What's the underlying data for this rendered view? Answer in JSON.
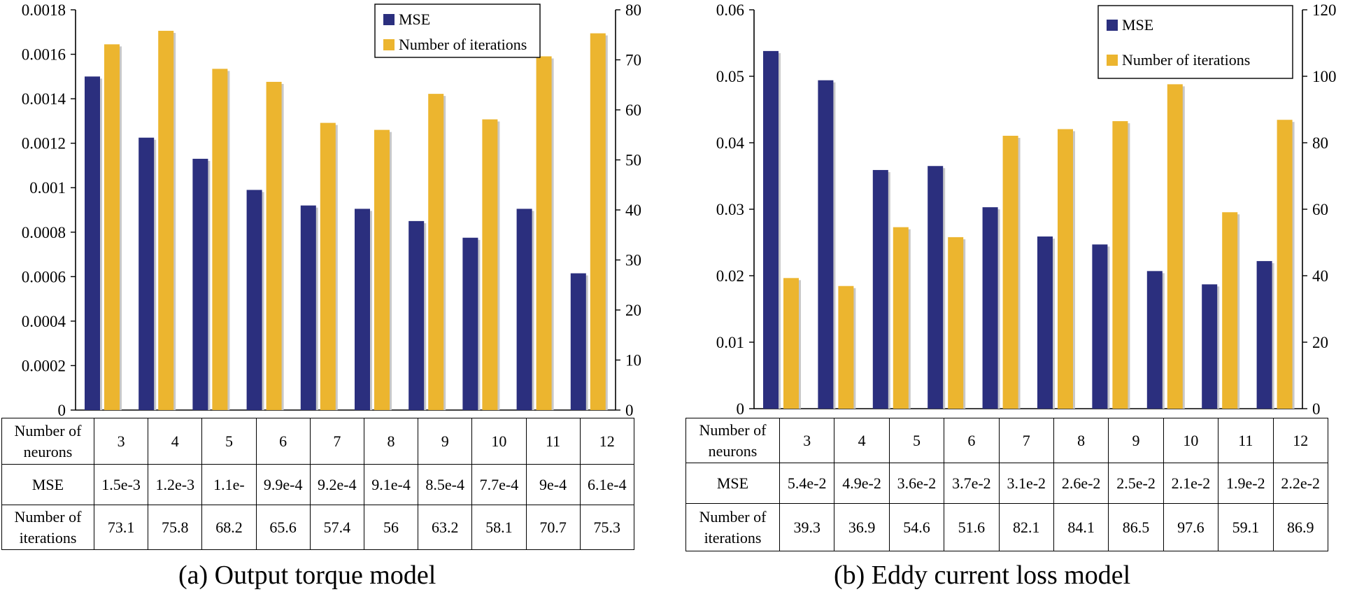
{
  "chart_data": [
    {
      "type": "bar",
      "caption": "(a) Output torque model",
      "categories": [
        "3",
        "4",
        "5",
        "6",
        "7",
        "8",
        "9",
        "10",
        "11",
        "12"
      ],
      "series": [
        {
          "name": "MSE",
          "axis": "left",
          "color": "#2b2f7e",
          "values": [
            0.0015,
            0.001225,
            0.00113,
            0.00099,
            0.00092,
            0.000905,
            0.00085,
            0.000775,
            0.000905,
            0.000615
          ]
        },
        {
          "name": "Number of iterations",
          "axis": "right",
          "color": "#ecb52f",
          "values": [
            73.1,
            75.8,
            68.2,
            65.6,
            57.4,
            56,
            63.2,
            58.1,
            70.7,
            75.3
          ]
        }
      ],
      "y_left": {
        "lim": [
          0,
          0.0018
        ],
        "ticks": [
          "0",
          "0.0002",
          "0.0004",
          "0.0006",
          "0.0008",
          "0.001",
          "0.0012",
          "0.0014",
          "0.0016",
          "0.0018"
        ]
      },
      "y_right": {
        "lim": [
          0,
          80
        ],
        "ticks": [
          "0",
          "10",
          "20",
          "30",
          "40",
          "50",
          "60",
          "70",
          "80"
        ]
      },
      "legend": {
        "position": "top-right",
        "entries": [
          "MSE",
          "Number of iterations"
        ]
      },
      "table": {
        "row_labels": [
          [
            "Number of",
            "neurons"
          ],
          [
            "MSE"
          ],
          [
            "Number of",
            "iterations"
          ]
        ],
        "neurons": [
          "3",
          "4",
          "5",
          "6",
          "7",
          "8",
          "9",
          "10",
          "11",
          "12"
        ],
        "mse": [
          "1.5e-3",
          "1.2e-3",
          "1.1e-",
          "9.9e-4",
          "9.2e-4",
          "9.1e-4",
          "8.5e-4",
          "7.7e-4",
          "9e-4",
          "6.1e-4"
        ],
        "iterations": [
          "73.1",
          "75.8",
          "68.2",
          "65.6",
          "57.4",
          "56",
          "63.2",
          "58.1",
          "70.7",
          "75.3"
        ]
      }
    },
    {
      "type": "bar",
      "caption": "(b) Eddy current loss model",
      "categories": [
        "3",
        "4",
        "5",
        "6",
        "7",
        "8",
        "9",
        "10",
        "11",
        "12"
      ],
      "series": [
        {
          "name": "MSE",
          "axis": "left",
          "color": "#2b2f7e",
          "values": [
            0.0538,
            0.0494,
            0.0359,
            0.0365,
            0.0303,
            0.0259,
            0.0247,
            0.0207,
            0.0187,
            0.0222
          ]
        },
        {
          "name": "Number of iterations",
          "axis": "right",
          "color": "#ecb52f",
          "values": [
            39.3,
            36.9,
            54.6,
            51.6,
            82.1,
            84.1,
            86.5,
            97.6,
            59.1,
            86.9
          ]
        }
      ],
      "y_left": {
        "lim": [
          0,
          0.06
        ],
        "ticks": [
          "0",
          "0.01",
          "0.02",
          "0.03",
          "0.04",
          "0.05",
          "0.06"
        ]
      },
      "y_right": {
        "lim": [
          0,
          120
        ],
        "ticks": [
          "0",
          "20",
          "40",
          "60",
          "80",
          "100",
          "120"
        ]
      },
      "legend": {
        "position": "top-right",
        "entries": [
          "MSE",
          "Number of iterations"
        ]
      },
      "table": {
        "row_labels": [
          [
            "Number of",
            "neurons"
          ],
          [
            "MSE"
          ],
          [
            "Number of",
            "iterations"
          ]
        ],
        "neurons": [
          "3",
          "4",
          "5",
          "6",
          "7",
          "8",
          "9",
          "10",
          "11",
          "12"
        ],
        "mse": [
          "5.4e-2",
          "4.9e-2",
          "3.6e-2",
          "3.7e-2",
          "3.1e-2",
          "2.6e-2",
          "2.5e-2",
          "2.1e-2",
          "1.9e-2",
          "2.2e-2"
        ],
        "iterations": [
          "39.3",
          "36.9",
          "54.6",
          "51.6",
          "82.1",
          "84.1",
          "86.5",
          "97.6",
          "59.1",
          "86.9"
        ]
      }
    }
  ]
}
